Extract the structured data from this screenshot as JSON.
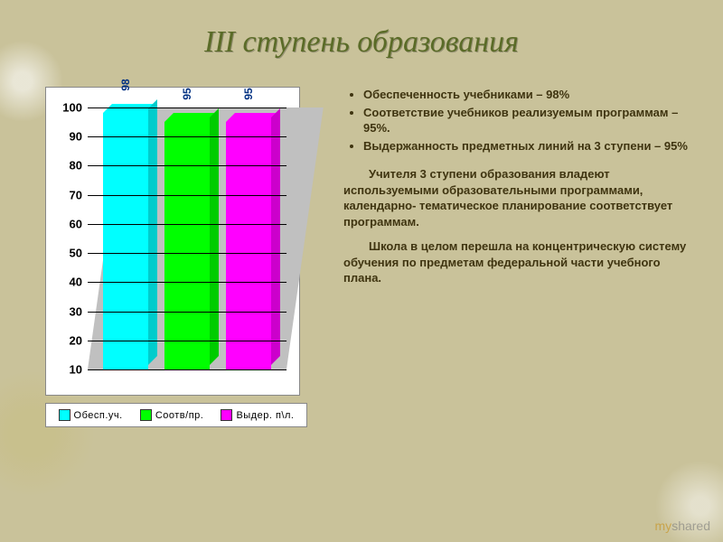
{
  "title": "III ступень образования",
  "chart": {
    "type": "bar",
    "ylim": [
      10,
      100
    ],
    "ytick_step": 10,
    "background_color": "#ffffff",
    "wall_color": "#c0c0c0",
    "grid_color": "#000000",
    "label_color": "#003082",
    "series": [
      {
        "label": "Обесп.уч.",
        "value": 98,
        "color": "#00ffff"
      },
      {
        "label": "Соотв/пр.",
        "value": 95,
        "color": "#00ff00"
      },
      {
        "label": "Выдер. п\\л.",
        "value": 95,
        "color": "#ff00ff"
      }
    ]
  },
  "bullets": [
    "Обеспеченность учебниками – 98%",
    "Соответствие учебников реализуемым программам – 95%.",
    "Выдержанность предметных линий на 3 ступени – 95%"
  ],
  "paragraphs": [
    "Учителя 3 ступени образования  владеют используемыми образовательными программами, календарно- тематическое планирование соответствует программам.",
    "Школа в целом перешла на концентрическую систему обучения по предметам федеральной части учебного плана."
  ],
  "watermark": {
    "left": "my",
    "right": "shared"
  }
}
